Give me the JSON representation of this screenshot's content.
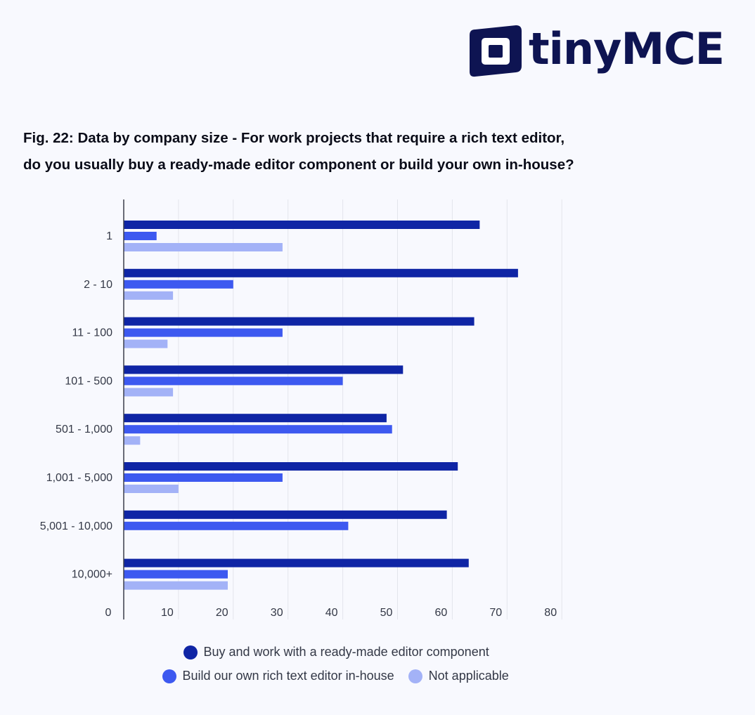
{
  "brand": {
    "name": "tinyMCE"
  },
  "header": {
    "title_line1": "Fig. 22: Data by company size - For work projects that require a rich text editor,",
    "title_line2": "do you usually buy a ready-made editor component or build your own in-house?"
  },
  "colors": {
    "buy": "#0f25a5",
    "build": "#3d59f0",
    "na": "#a3b2f7",
    "grid": "#e3e5ec",
    "axis": "#3b3e4a"
  },
  "chart_data": {
    "type": "bar",
    "orientation": "horizontal",
    "categories": [
      "1",
      "2 - 10",
      "11 - 100",
      "101 - 500",
      "501 - 1,000",
      "1,001 - 5,000",
      "5,001 - 10,000",
      "10,000+"
    ],
    "series": [
      {
        "name": "Buy and work with a ready-made editor component",
        "values": [
          65,
          72,
          64,
          51,
          48,
          61,
          59,
          63
        ]
      },
      {
        "name": "Build our own rich text editor in-house",
        "values": [
          6,
          20,
          29,
          40,
          49,
          29,
          41,
          19
        ]
      },
      {
        "name": "Not applicable",
        "values": [
          29,
          9,
          8,
          9,
          3,
          10,
          0,
          19
        ]
      }
    ],
    "xlim": [
      0,
      80
    ],
    "xticks": [
      "0",
      "10",
      "20",
      "30",
      "40",
      "50",
      "60",
      "70",
      "80"
    ],
    "grid": true,
    "legend": "bottom"
  },
  "legend": {
    "row1": [
      {
        "key": "buy",
        "label": "Buy and work with a ready-made editor component"
      }
    ],
    "row2": [
      {
        "key": "build",
        "label": "Build our own rich text editor in-house"
      },
      {
        "key": "na",
        "label": "Not applicable"
      }
    ]
  }
}
